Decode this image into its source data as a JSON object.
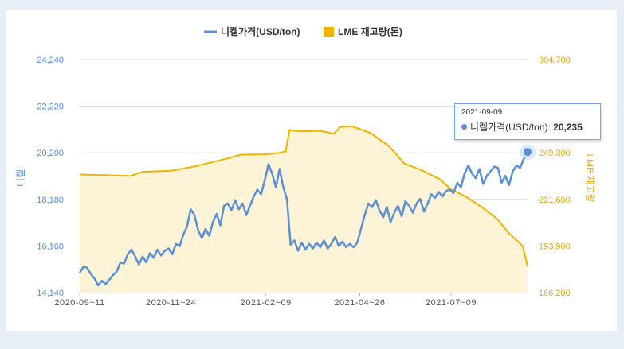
{
  "chart_data": {
    "type": "line",
    "title": "",
    "legend": {
      "placement": "top-center"
    },
    "grid": {
      "horizontal": true,
      "vertical": false
    },
    "colors": {
      "nickel": "#5b8fd6",
      "stock": "#f0b400",
      "stock_fill": "#fdf3d6",
      "axis_left": "#5b8fd6",
      "axis_right": "#e0a924"
    },
    "x": {
      "start": "2020-09-11",
      "end": "2021-09-09",
      "tick_labels": [
        "2020-09-11",
        "2020-11-24",
        "2021-02-09",
        "2021-04-26",
        "2021-07-09"
      ]
    },
    "y_left": {
      "label": "니켈",
      "range": [
        14140,
        24240
      ],
      "tick_labels": [
        "14,140",
        "16,160",
        "18,180",
        "20,200",
        "22,220",
        "24,240"
      ]
    },
    "y_right": {
      "label": "LME 재고량",
      "range": [
        166200,
        304700
      ],
      "tick_labels": [
        "166,200",
        "193,900",
        "221,600",
        "249,300",
        "",
        "304,700"
      ]
    },
    "series": [
      {
        "name": "니켈가격(USD/ton)",
        "axis": "left",
        "kind": "line",
        "points": [
          [
            "2020-09-11",
            15000
          ],
          [
            "2020-09-14",
            15250
          ],
          [
            "2020-09-17",
            15220
          ],
          [
            "2020-09-20",
            14950
          ],
          [
            "2020-09-23",
            14750
          ],
          [
            "2020-09-26",
            14450
          ],
          [
            "2020-09-29",
            14650
          ],
          [
            "2020-10-02",
            14500
          ],
          [
            "2020-10-05",
            14700
          ],
          [
            "2020-10-08",
            14900
          ],
          [
            "2020-10-11",
            15050
          ],
          [
            "2020-10-14",
            15450
          ],
          [
            "2020-10-17",
            15400
          ],
          [
            "2020-10-20",
            15800
          ],
          [
            "2020-10-23",
            16000
          ],
          [
            "2020-10-26",
            15700
          ],
          [
            "2020-10-29",
            15350
          ],
          [
            "2020-11-01",
            15700
          ],
          [
            "2020-11-04",
            15450
          ],
          [
            "2020-11-07",
            15850
          ],
          [
            "2020-11-10",
            15650
          ],
          [
            "2020-11-13",
            16000
          ],
          [
            "2020-11-16",
            15750
          ],
          [
            "2020-11-19",
            15950
          ],
          [
            "2020-11-22",
            16050
          ],
          [
            "2020-11-25",
            15800
          ],
          [
            "2020-11-28",
            16250
          ],
          [
            "2020-12-01",
            16150
          ],
          [
            "2020-12-04",
            16650
          ],
          [
            "2020-12-07",
            17000
          ],
          [
            "2020-12-10",
            17750
          ],
          [
            "2020-12-13",
            17500
          ],
          [
            "2020-12-16",
            16850
          ],
          [
            "2020-12-19",
            16500
          ],
          [
            "2020-12-22",
            16900
          ],
          [
            "2020-12-25",
            16600
          ],
          [
            "2020-12-28",
            17200
          ],
          [
            "2020-12-31",
            17550
          ],
          [
            "2021-01-03",
            17050
          ],
          [
            "2021-01-06",
            17900
          ],
          [
            "2021-01-09",
            18000
          ],
          [
            "2021-01-12",
            17700
          ],
          [
            "2021-01-15",
            18150
          ],
          [
            "2021-01-18",
            17750
          ],
          [
            "2021-01-21",
            18000
          ],
          [
            "2021-01-24",
            17500
          ],
          [
            "2021-01-27",
            17900
          ],
          [
            "2021-01-30",
            18300
          ],
          [
            "2021-02-02",
            18600
          ],
          [
            "2021-02-05",
            18400
          ],
          [
            "2021-02-08",
            19000
          ],
          [
            "2021-02-11",
            19700
          ],
          [
            "2021-02-14",
            19300
          ],
          [
            "2021-02-17",
            18700
          ],
          [
            "2021-02-20",
            19500
          ],
          [
            "2021-02-23",
            18700
          ],
          [
            "2021-02-26",
            18200
          ],
          [
            "2021-03-01",
            16200
          ],
          [
            "2021-03-04",
            16400
          ],
          [
            "2021-03-07",
            15950
          ],
          [
            "2021-03-10",
            16300
          ],
          [
            "2021-03-13",
            16000
          ],
          [
            "2021-03-16",
            16250
          ],
          [
            "2021-03-19",
            16050
          ],
          [
            "2021-03-22",
            16300
          ],
          [
            "2021-03-25",
            16100
          ],
          [
            "2021-03-28",
            16400
          ],
          [
            "2021-03-31",
            16050
          ],
          [
            "2021-04-03",
            16250
          ],
          [
            "2021-04-06",
            16550
          ],
          [
            "2021-04-09",
            16150
          ],
          [
            "2021-04-12",
            16350
          ],
          [
            "2021-04-15",
            16100
          ],
          [
            "2021-04-18",
            16250
          ],
          [
            "2021-04-21",
            16100
          ],
          [
            "2021-04-24",
            16300
          ],
          [
            "2021-04-27",
            16900
          ],
          [
            "2021-04-30",
            17500
          ],
          [
            "2021-05-03",
            18000
          ],
          [
            "2021-05-06",
            17850
          ],
          [
            "2021-05-09",
            18150
          ],
          [
            "2021-05-12",
            17700
          ],
          [
            "2021-05-15",
            17400
          ],
          [
            "2021-05-18",
            17850
          ],
          [
            "2021-05-21",
            17200
          ],
          [
            "2021-05-24",
            17600
          ],
          [
            "2021-05-27",
            17900
          ],
          [
            "2021-05-30",
            17450
          ],
          [
            "2021-06-02",
            18100
          ],
          [
            "2021-06-05",
            17900
          ],
          [
            "2021-06-08",
            17600
          ],
          [
            "2021-06-11",
            18000
          ],
          [
            "2021-06-14",
            18200
          ],
          [
            "2021-06-17",
            17650
          ],
          [
            "2021-06-20",
            18000
          ],
          [
            "2021-06-23",
            18400
          ],
          [
            "2021-06-26",
            18250
          ],
          [
            "2021-06-29",
            18500
          ],
          [
            "2021-07-02",
            18300
          ],
          [
            "2021-07-05",
            18550
          ],
          [
            "2021-07-08",
            18600
          ],
          [
            "2021-07-11",
            18450
          ],
          [
            "2021-07-14",
            18900
          ],
          [
            "2021-07-17",
            18700
          ],
          [
            "2021-07-20",
            19300
          ],
          [
            "2021-07-23",
            19650
          ],
          [
            "2021-07-26",
            19300
          ],
          [
            "2021-07-29",
            19100
          ],
          [
            "2021-08-01",
            19500
          ],
          [
            "2021-08-04",
            18850
          ],
          [
            "2021-08-07",
            19200
          ],
          [
            "2021-08-10",
            19400
          ],
          [
            "2021-08-13",
            19600
          ],
          [
            "2021-08-16",
            19550
          ],
          [
            "2021-08-19",
            18900
          ],
          [
            "2021-08-22",
            19200
          ],
          [
            "2021-08-25",
            18800
          ],
          [
            "2021-08-28",
            19400
          ],
          [
            "2021-08-31",
            19650
          ],
          [
            "2021-09-03",
            19550
          ],
          [
            "2021-09-06",
            19950
          ],
          [
            "2021-09-09",
            20235
          ]
        ]
      },
      {
        "name": "LME 재고량(톤)",
        "axis": "right",
        "kind": "area",
        "points": [
          [
            "2020-09-11",
            236400
          ],
          [
            "2020-10-01",
            236000
          ],
          [
            "2020-10-22",
            235500
          ],
          [
            "2020-11-01",
            238000
          ],
          [
            "2020-11-24",
            238600
          ],
          [
            "2020-12-15",
            241500
          ],
          [
            "2021-01-05",
            245300
          ],
          [
            "2021-01-20",
            248200
          ],
          [
            "2021-02-09",
            248400
          ],
          [
            "2021-02-20",
            249300
          ],
          [
            "2021-02-25",
            250200
          ],
          [
            "2021-02-28",
            262800
          ],
          [
            "2021-03-10",
            262000
          ],
          [
            "2021-03-25",
            262400
          ],
          [
            "2021-04-05",
            260600
          ],
          [
            "2021-04-10",
            264600
          ],
          [
            "2021-04-20",
            265000
          ],
          [
            "2021-05-05",
            261000
          ],
          [
            "2021-05-20",
            253000
          ],
          [
            "2021-06-01",
            243000
          ],
          [
            "2021-06-15",
            239000
          ],
          [
            "2021-06-30",
            233500
          ],
          [
            "2021-07-09",
            227500
          ],
          [
            "2021-07-20",
            223700
          ],
          [
            "2021-08-01",
            218000
          ],
          [
            "2021-08-15",
            210300
          ],
          [
            "2021-08-25",
            201400
          ],
          [
            "2021-09-01",
            196800
          ],
          [
            "2021-09-05",
            193900
          ],
          [
            "2021-09-09",
            182000
          ]
        ]
      }
    ],
    "tooltip": {
      "date": "2021-09-09",
      "series_label": "니켈가격(USD/ton):",
      "value": "20,235"
    }
  }
}
